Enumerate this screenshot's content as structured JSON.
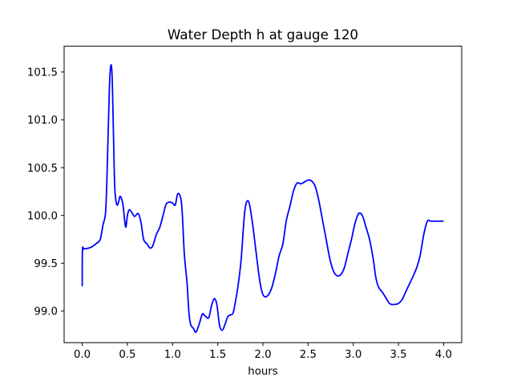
{
  "chart_data": {
    "type": "line",
    "title": "Water Depth h at gauge 120",
    "xlabel": "hours",
    "ylabel": "",
    "xlim": [
      -0.2,
      4.2
    ],
    "ylim": [
      98.67,
      101.77
    ],
    "grid": false,
    "legend": "none",
    "x_ticks": [
      0.0,
      0.5,
      1.0,
      1.5,
      2.0,
      2.5,
      3.0,
      3.5,
      4.0
    ],
    "x_tick_labels": [
      "0.0",
      "0.5",
      "1.0",
      "1.5",
      "2.0",
      "2.5",
      "3.0",
      "3.5",
      "4.0"
    ],
    "y_ticks": [
      99.0,
      99.5,
      100.0,
      100.5,
      101.0,
      101.5
    ],
    "y_tick_labels": [
      "99.0",
      "99.5",
      "100.0",
      "100.5",
      "101.0",
      "101.5"
    ],
    "series": [
      {
        "color": "#0000ff",
        "x": [
          0.0,
          0.003,
          0.02,
          0.08,
          0.12,
          0.16,
          0.2,
          0.23,
          0.26,
          0.28,
          0.3,
          0.315,
          0.33,
          0.345,
          0.36,
          0.38,
          0.4,
          0.42,
          0.45,
          0.48,
          0.5,
          0.52,
          0.55,
          0.58,
          0.62,
          0.65,
          0.68,
          0.72,
          0.75,
          0.78,
          0.82,
          0.86,
          0.9,
          0.93,
          0.97,
          1.0,
          1.03,
          1.06,
          1.1,
          1.13,
          1.16,
          1.18,
          1.2,
          1.23,
          1.26,
          1.3,
          1.33,
          1.36,
          1.4,
          1.43,
          1.46,
          1.49,
          1.52,
          1.55,
          1.58,
          1.61,
          1.64,
          1.67,
          1.7,
          1.73,
          1.76,
          1.8,
          1.84,
          1.88,
          1.92,
          1.96,
          1.99,
          2.02,
          2.06,
          2.1,
          2.14,
          2.18,
          2.22,
          2.26,
          2.3,
          2.34,
          2.38,
          2.42,
          2.46,
          2.5,
          2.54,
          2.58,
          2.62,
          2.66,
          2.7,
          2.74,
          2.78,
          2.82,
          2.86,
          2.9,
          2.94,
          2.98,
          3.02,
          3.06,
          3.1,
          3.14,
          3.18,
          3.22,
          3.25,
          3.28,
          3.32,
          3.36,
          3.4,
          3.43,
          3.46,
          3.5,
          3.54,
          3.58,
          3.62,
          3.66,
          3.7,
          3.74,
          3.78,
          3.82,
          3.86,
          3.9,
          3.94,
          3.97,
          4.0
        ],
        "y": [
          99.26,
          99.64,
          99.65,
          99.66,
          99.68,
          99.71,
          99.75,
          99.9,
          100.05,
          100.6,
          101.3,
          101.56,
          101.48,
          100.9,
          100.3,
          100.12,
          100.13,
          100.2,
          100.12,
          99.88,
          100.0,
          100.06,
          100.03,
          99.99,
          100.02,
          99.93,
          99.75,
          99.7,
          99.66,
          99.68,
          99.8,
          99.88,
          100.02,
          100.12,
          100.14,
          100.13,
          100.11,
          100.23,
          100.12,
          99.6,
          99.3,
          99.0,
          98.86,
          98.82,
          98.78,
          98.88,
          98.97,
          98.95,
          98.93,
          99.05,
          99.13,
          99.07,
          98.85,
          98.8,
          98.86,
          98.94,
          98.96,
          98.98,
          99.12,
          99.3,
          99.55,
          100.05,
          100.15,
          99.95,
          99.65,
          99.35,
          99.2,
          99.15,
          99.17,
          99.25,
          99.4,
          99.58,
          99.7,
          99.95,
          100.1,
          100.26,
          100.34,
          100.33,
          100.35,
          100.37,
          100.36,
          100.3,
          100.15,
          99.95,
          99.75,
          99.55,
          99.42,
          99.37,
          99.38,
          99.45,
          99.6,
          99.75,
          99.92,
          100.02,
          100.0,
          99.88,
          99.75,
          99.55,
          99.35,
          99.25,
          99.2,
          99.14,
          99.08,
          99.07,
          99.07,
          99.08,
          99.12,
          99.2,
          99.28,
          99.36,
          99.45,
          99.58,
          99.8,
          99.94,
          99.94,
          99.94,
          99.94,
          99.94,
          99.94
        ]
      }
    ]
  }
}
